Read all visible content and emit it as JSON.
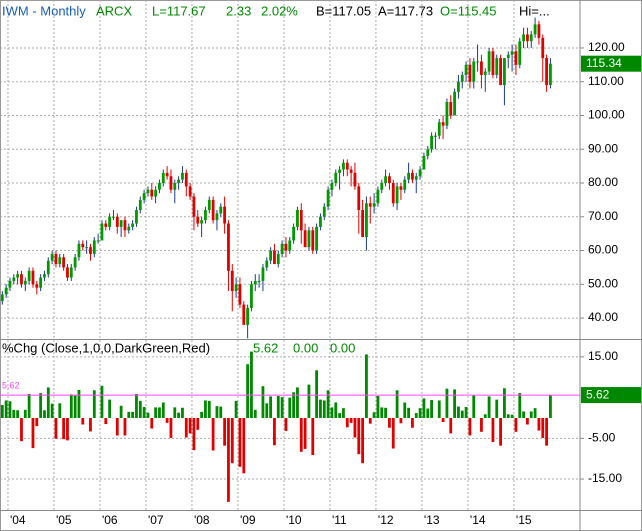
{
  "header": {
    "symbol": "IWM - Monthly",
    "exchange": "ARCX",
    "last": "L=117.67",
    "change": "2.33",
    "change_pct": "2.02%",
    "bid": "B=117.05",
    "ask": "A=117.73",
    "open": "O=115.45",
    "high": "Hi=..."
  },
  "chart_data": [
    {
      "type": "candlestick",
      "up_color": "#009900",
      "down_color": "#e00000",
      "grid": true,
      "ylim": [
        34.1,
        134.2
      ],
      "yticks": [
        {
          "value": 40,
          "label": "40.00"
        },
        {
          "value": 50,
          "label": "50.00"
        },
        {
          "value": 60,
          "label": "60.00"
        },
        {
          "value": 70,
          "label": "70.00"
        },
        {
          "value": 80,
          "label": "80.00"
        },
        {
          "value": 90,
          "label": "90.00"
        },
        {
          "value": 100,
          "label": "100.00"
        },
        {
          "value": 110,
          "label": "110.00"
        },
        {
          "value": 120,
          "label": "120.00"
        }
      ],
      "ohlc": [
        [
          45,
          48,
          44,
          47
        ],
        [
          47,
          50,
          46,
          49
        ],
        [
          49,
          52,
          48,
          51
        ],
        [
          51,
          53,
          50,
          52
        ],
        [
          52,
          54,
          50,
          53
        ],
        [
          53,
          54,
          49,
          50
        ],
        [
          50,
          52,
          48,
          51
        ],
        [
          51,
          55,
          50,
          54
        ],
        [
          54,
          55,
          49,
          50
        ],
        [
          50,
          51,
          47,
          49
        ],
        [
          49,
          53,
          48,
          52
        ],
        [
          52,
          54,
          51,
          53
        ],
        [
          53,
          58,
          52,
          57
        ],
        [
          57,
          60,
          56,
          59
        ],
        [
          59,
          60,
          55,
          56
        ],
        [
          56,
          59,
          55,
          58
        ],
        [
          58,
          59,
          54,
          55
        ],
        [
          55,
          56,
          51,
          52
        ],
        [
          52,
          56,
          51,
          55
        ],
        [
          55,
          59,
          54,
          58
        ],
        [
          58,
          63,
          57,
          62
        ],
        [
          62,
          63,
          60,
          61
        ],
        [
          61,
          63,
          59,
          61
        ],
        [
          61,
          62,
          57,
          59
        ],
        [
          59,
          64,
          58,
          63
        ],
        [
          63,
          65,
          62,
          63
        ],
        [
          63,
          69,
          63,
          68
        ],
        [
          68,
          69,
          66,
          67
        ],
        [
          67,
          71,
          66,
          70
        ],
        [
          70,
          72,
          69,
          70
        ],
        [
          70,
          71,
          65,
          67
        ],
        [
          67,
          69,
          64,
          69
        ],
        [
          69,
          70,
          64,
          66
        ],
        [
          66,
          68,
          65,
          67
        ],
        [
          67,
          69,
          66,
          68
        ],
        [
          68,
          73,
          67,
          72
        ],
        [
          72,
          76,
          71,
          75
        ],
        [
          75,
          78,
          74,
          77
        ],
        [
          77,
          79,
          76,
          78
        ],
        [
          78,
          80,
          75,
          76
        ],
        [
          76,
          79,
          74,
          78
        ],
        [
          78,
          81,
          77,
          80
        ],
        [
          80,
          84,
          79,
          83
        ],
        [
          83,
          85,
          81,
          82
        ],
        [
          82,
          84,
          77,
          78
        ],
        [
          78,
          81,
          74,
          80
        ],
        [
          80,
          82,
          78,
          81
        ],
        [
          81,
          85,
          80,
          83
        ],
        [
          83,
          84,
          76,
          79
        ],
        [
          79,
          80,
          75,
          76
        ],
        [
          76,
          77,
          66,
          70
        ],
        [
          70,
          72,
          67,
          68
        ],
        [
          68,
          70,
          64,
          69
        ],
        [
          69,
          73,
          68,
          72
        ],
        [
          72,
          76,
          71,
          75
        ],
        [
          75,
          76,
          68,
          69
        ],
        [
          69,
          72,
          66,
          71
        ],
        [
          71,
          74,
          70,
          73
        ],
        [
          73,
          76,
          65,
          68
        ],
        [
          68,
          69,
          48,
          54
        ],
        [
          54,
          56,
          42,
          48
        ],
        [
          48,
          52,
          46,
          50
        ],
        [
          50,
          52,
          43,
          44
        ],
        [
          44,
          45,
          38,
          38
        ],
        [
          38,
          44,
          34,
          43
        ],
        [
          43,
          51,
          42,
          50
        ],
        [
          50,
          53,
          48,
          51
        ],
        [
          51,
          53,
          49,
          51
        ],
        [
          51,
          56,
          48,
          55
        ],
        [
          55,
          58,
          54,
          57
        ],
        [
          57,
          61,
          56,
          60
        ],
        [
          60,
          62,
          56,
          56
        ],
        [
          56,
          60,
          55,
          59
        ],
        [
          59,
          63,
          58,
          62
        ],
        [
          62,
          64,
          58,
          60
        ],
        [
          60,
          64,
          59,
          63
        ],
        [
          63,
          68,
          62,
          67
        ],
        [
          67,
          73,
          66,
          72
        ],
        [
          72,
          74,
          62,
          66
        ],
        [
          66,
          68,
          61,
          61
        ],
        [
          61,
          67,
          60,
          66
        ],
        [
          66,
          67,
          59,
          60
        ],
        [
          60,
          68,
          59,
          67
        ],
        [
          67,
          71,
          66,
          70
        ],
        [
          70,
          74,
          69,
          73
        ],
        [
          73,
          79,
          72,
          78
        ],
        [
          78,
          81,
          76,
          80
        ],
        [
          80,
          84,
          79,
          83
        ],
        [
          83,
          85,
          78,
          84
        ],
        [
          84,
          87,
          82,
          86
        ],
        [
          86,
          87,
          82,
          84
        ],
        [
          84,
          85,
          79,
          83
        ],
        [
          83,
          86,
          78,
          79
        ],
        [
          79,
          80,
          65,
          72
        ],
        [
          72,
          75,
          64,
          64
        ],
        [
          64,
          76,
          60,
          74
        ],
        [
          74,
          76,
          68,
          73
        ],
        [
          73,
          77,
          71,
          74
        ],
        [
          74,
          79,
          73,
          78
        ],
        [
          78,
          81,
          77,
          80
        ],
        [
          80,
          84,
          79,
          82
        ],
        [
          82,
          83,
          78,
          80
        ],
        [
          80,
          81,
          73,
          74
        ],
        [
          74,
          80,
          72,
          79
        ],
        [
          79,
          80,
          75,
          78
        ],
        [
          78,
          82,
          77,
          81
        ],
        [
          81,
          86,
          80,
          83
        ],
        [
          83,
          84,
          80,
          81
        ],
        [
          81,
          83,
          77,
          82
        ],
        [
          82,
          85,
          81,
          84
        ],
        [
          84,
          89,
          84,
          88
        ],
        [
          88,
          91,
          87,
          90
        ],
        [
          90,
          95,
          89,
          94
        ],
        [
          94,
          95,
          90,
          94
        ],
        [
          94,
          99,
          93,
          98
        ],
        [
          98,
          100,
          93,
          97
        ],
        [
          97,
          105,
          96,
          104
        ],
        [
          104,
          106,
          99,
          100
        ],
        [
          100,
          108,
          100,
          107
        ],
        [
          107,
          112,
          105,
          110
        ],
        [
          110,
          113,
          108,
          112
        ],
        [
          112,
          116,
          110,
          115
        ],
        [
          115,
          117,
          108,
          110
        ],
        [
          110,
          117,
          108,
          116
        ],
        [
          116,
          121,
          113,
          116
        ],
        [
          116,
          118,
          108,
          112
        ],
        [
          112,
          114,
          107,
          113
        ],
        [
          113,
          120,
          112,
          119
        ],
        [
          119,
          120,
          111,
          112
        ],
        [
          112,
          118,
          111,
          117
        ],
        [
          117,
          118,
          109,
          109
        ],
        [
          109,
          117,
          103,
          117
        ],
        [
          117,
          119,
          114,
          118
        ],
        [
          118,
          121,
          113,
          119
        ],
        [
          119,
          121,
          112,
          115
        ],
        [
          115,
          123,
          114,
          122
        ],
        [
          122,
          126,
          120,
          124
        ],
        [
          124,
          126,
          120,
          122
        ],
        [
          122,
          125,
          120,
          124
        ],
        [
          124,
          129,
          123,
          127
        ],
        [
          127,
          128,
          121,
          123
        ],
        [
          123,
          124,
          110,
          117
        ],
        [
          117,
          118,
          107,
          109
        ],
        [
          109,
          117,
          108,
          115.34
        ]
      ]
    },
    {
      "type": "bar",
      "title": "%Chg (Close,1,0,0,DarkGreen,Red)",
      "legend_values": [
        "5.62",
        "0.00",
        "0.00"
      ],
      "up_color": "#008800",
      "down_color": "#e00000",
      "level_color": "#ff44ff",
      "grid": true,
      "ylim": [
        -22.6,
        18.9
      ],
      "yticks": [
        {
          "value": 15,
          "label": "15.00"
        },
        {
          "value": -5,
          "label": "-5.00"
        },
        {
          "value": -15,
          "label": "-15.00"
        }
      ],
      "categories": [
        null,
        null,
        "'04",
        null,
        null,
        null,
        null,
        null,
        null,
        null,
        null,
        null,
        null,
        null,
        "'05",
        null,
        null,
        null,
        null,
        null,
        null,
        null,
        null,
        null,
        null,
        null,
        "'06",
        null,
        null,
        null,
        null,
        null,
        null,
        null,
        null,
        null,
        null,
        null,
        "'07",
        null,
        null,
        null,
        null,
        null,
        null,
        null,
        null,
        null,
        null,
        null,
        "'08",
        null,
        null,
        null,
        null,
        null,
        null,
        null,
        null,
        null,
        null,
        null,
        "'09",
        null,
        null,
        null,
        null,
        null,
        null,
        null,
        null,
        null,
        null,
        null,
        "'10",
        null,
        null,
        null,
        null,
        null,
        null,
        null,
        null,
        null,
        null,
        null,
        "'11",
        null,
        null,
        null,
        null,
        null,
        null,
        null,
        null,
        null,
        null,
        null,
        "'12",
        null,
        null,
        null,
        null,
        null,
        null,
        null,
        null,
        null,
        null,
        null,
        "'13",
        null,
        null,
        null,
        null,
        null,
        null,
        null,
        null,
        null,
        null,
        null,
        "'14",
        null,
        null,
        null,
        null,
        null,
        null,
        null,
        null,
        null,
        null,
        null,
        "'15",
        null,
        null,
        null,
        null,
        null,
        null,
        null,
        null,
        null
      ],
      "values": [
        3.2,
        4.3,
        4.1,
        2.0,
        1.9,
        -5.7,
        2.0,
        5.9,
        -7.4,
        -2.0,
        6.1,
        1.9,
        7.5,
        3.5,
        -5.1,
        3.6,
        -5.2,
        -5.5,
        5.8,
        5.5,
        6.9,
        -1.6,
        0.0,
        -3.3,
        6.8,
        0.0,
        7.9,
        -1.5,
        4.5,
        0.0,
        -4.3,
        3.0,
        -4.3,
        1.5,
        1.5,
        5.9,
        4.2,
        2.7,
        1.3,
        -2.6,
        2.6,
        2.6,
        3.8,
        -1.2,
        -4.9,
        2.6,
        1.3,
        2.5,
        -4.8,
        -3.8,
        -7.9,
        -2.9,
        1.5,
        4.3,
        4.2,
        -8.0,
        2.9,
        2.8,
        -6.8,
        -20.6,
        -11.1,
        4.2,
        -12.0,
        -13.6,
        13.2,
        16.3,
        2.0,
        0.0,
        7.8,
        3.6,
        5.3,
        -6.7,
        5.4,
        5.1,
        -3.2,
        5.0,
        6.3,
        7.5,
        -8.3,
        -7.6,
        8.2,
        -9.1,
        11.7,
        4.5,
        4.3,
        6.8,
        2.6,
        3.8,
        1.2,
        2.4,
        -2.3,
        -1.2,
        -4.8,
        -8.9,
        -11.1,
        15.6,
        -1.4,
        1.4,
        5.4,
        2.6,
        2.5,
        -2.4,
        -7.5,
        6.8,
        -1.3,
        3.8,
        2.5,
        -2.4,
        1.2,
        2.4,
        4.8,
        2.3,
        4.4,
        0.0,
        4.3,
        -1.0,
        7.2,
        -3.8,
        7.0,
        2.8,
        1.8,
        2.7,
        -4.3,
        5.5,
        0.0,
        -3.4,
        0.9,
        5.3,
        -5.9,
        4.5,
        -6.8,
        7.3,
        0.9,
        0.8,
        -3.4,
        6.1,
        1.6,
        -1.6,
        1.6,
        2.4,
        -3.1,
        -4.9,
        -6.8,
        5.62
      ]
    }
  ]
}
